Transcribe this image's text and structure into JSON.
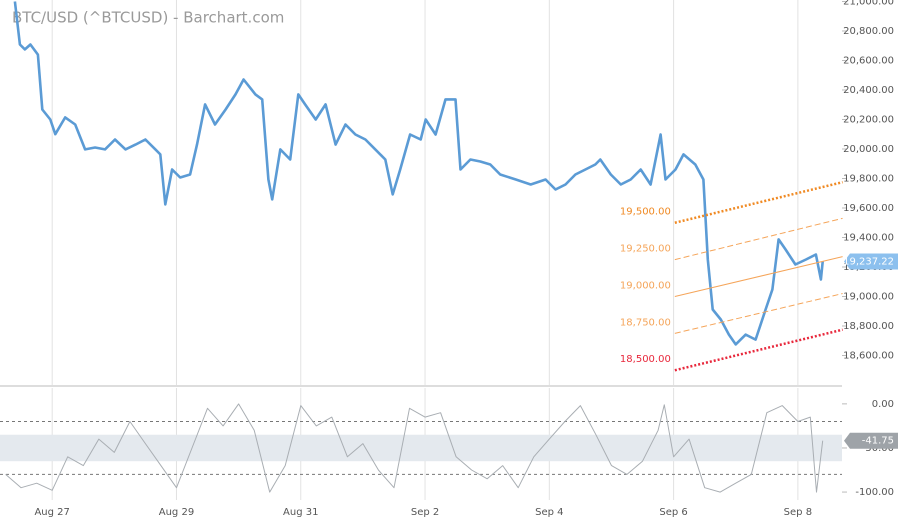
{
  "chart_data": [
    {
      "type": "line",
      "title": "BTC/USD (^BTCUSD) - Barchart.com",
      "x": [
        -0.6,
        -0.52,
        -0.44,
        -0.35,
        -0.23,
        -0.16,
        -0.03,
        0.05,
        0.21,
        0.37,
        0.53,
        0.69,
        0.85,
        1.01,
        1.18,
        1.34,
        1.5,
        1.66,
        1.74,
        1.82,
        1.93,
        2.06,
        2.22,
        2.33,
        2.46,
        2.62,
        2.79,
        2.95,
        3.08,
        3.27,
        3.38,
        3.48,
        3.54,
        3.67,
        3.83,
        3.96,
        4.07,
        4.24,
        4.4,
        4.56,
        4.72,
        4.88,
        5.04,
        5.2,
        5.36,
        5.48,
        5.6,
        5.76,
        5.93,
        6.01,
        6.17,
        6.33,
        6.49,
        6.57,
        6.73,
        6.89,
        7.05,
        7.21,
        7.46,
        7.7,
        7.94,
        8.1,
        8.26,
        8.42,
        8.58,
        8.74,
        8.82,
        8.99,
        9.15,
        9.31,
        9.47,
        9.63,
        9.79,
        9.87,
        10.03,
        10.16,
        10.35,
        10.48,
        10.55,
        10.63,
        10.76,
        10.89,
        11.0,
        11.16,
        11.32,
        11.48,
        11.59,
        11.69,
        11.8,
        11.96,
        12.13,
        12.29,
        12.37,
        12.4
      ],
      "series": [
        {
          "color": "#5b9bd5",
          "values": [
            21000,
            20708,
            20675,
            20708,
            20640,
            20268,
            20200,
            20100,
            20214,
            20166,
            19997,
            20010,
            19997,
            20064,
            19997,
            20030,
            20064,
            19997,
            19963,
            19624,
            19861,
            19807,
            19827,
            20030,
            20302,
            20166,
            20268,
            20370,
            20471,
            20370,
            20336,
            19793,
            19658,
            19997,
            19929,
            20370,
            20302,
            20200,
            20302,
            20030,
            20166,
            20098,
            20064,
            19997,
            19929,
            19692,
            19861,
            20098,
            20064,
            20200,
            20098,
            20336,
            20336,
            19861,
            19929,
            19915,
            19895,
            19827,
            19793,
            19759,
            19793,
            19725,
            19759,
            19827,
            19861,
            19895,
            19929,
            19827,
            19759,
            19793,
            19861,
            19759,
            20098,
            19793,
            19861,
            19963,
            19895,
            19793,
            19251,
            18912,
            18844,
            18742,
            18675,
            18742,
            18708,
            18912,
            19048,
            19387,
            19319,
            19217,
            19251,
            19285,
            19115,
            19237
          ]
        }
      ],
      "xlim": [
        -0.84,
        12.71
      ],
      "ylim": [
        18400,
        21010
      ],
      "yticks": [
        {
          "value": 18600,
          "label": "18,600.00"
        },
        {
          "value": 18800,
          "label": "18,800.00"
        },
        {
          "value": 19000,
          "label": "19,000.00"
        },
        {
          "value": 19200,
          "label": "19,200.00"
        },
        {
          "value": 19400,
          "label": "19,400.00"
        },
        {
          "value": 19600,
          "label": "19,600.00"
        },
        {
          "value": 19800,
          "label": "19,800.00"
        },
        {
          "value": 20000,
          "label": "20,000.00"
        },
        {
          "value": 20200,
          "label": "20,200.00"
        },
        {
          "value": 20400,
          "label": "20,400.00"
        },
        {
          "value": 20600,
          "label": "20,600.00"
        },
        {
          "value": 20800,
          "label": "20,800.00"
        },
        {
          "value": 21000,
          "label": "21,000.00"
        }
      ],
      "last_value": {
        "value": 19237.22,
        "label": "19,237.22"
      },
      "channel": {
        "x": [
          10.02,
          12.72
        ],
        "lines": [
          {
            "values": [
              19500,
              19775
            ],
            "value_label": "19,500.00",
            "color": "#f08a24",
            "style": "dotted"
          },
          {
            "values": [
              19250,
              19530
            ],
            "value_label": "19,250.00",
            "color": "#f5a55a",
            "style": "dashed"
          },
          {
            "values": [
              19000,
              19270
            ],
            "value_label": "19,000.00",
            "color": "#f5a55a",
            "style": "solid"
          },
          {
            "values": [
              18750,
              19020
            ],
            "value_label": "18,750.00",
            "color": "#f5a55a",
            "style": "dashed"
          },
          {
            "values": [
              18500,
              18775
            ],
            "value_label": "18,500.00",
            "color": "#e8283c",
            "style": "dotted"
          }
        ]
      }
    },
    {
      "type": "line",
      "x": [
        -0.75,
        -0.5,
        -0.25,
        0,
        0.25,
        0.5,
        0.75,
        1,
        1.25,
        1.5,
        1.75,
        2,
        2.25,
        2.5,
        2.75,
        3,
        3.25,
        3.5,
        3.75,
        4,
        4.25,
        4.5,
        4.75,
        5,
        5.25,
        5.5,
        5.75,
        6,
        6.25,
        6.5,
        6.75,
        7,
        7.25,
        7.5,
        7.75,
        8,
        8.25,
        8.5,
        8.75,
        9,
        9.25,
        9.5,
        9.75,
        9.85,
        10,
        10.25,
        10.5,
        10.75,
        11,
        11.25,
        11.5,
        11.75,
        12,
        12.2,
        12.3,
        12.4
      ],
      "series": [
        {
          "color": "#a9aeb3",
          "values": [
            -80,
            -95,
            -90,
            -98,
            -60,
            -70,
            -40,
            -55,
            -20,
            -45,
            -70,
            -95,
            -50,
            -5,
            -25,
            0,
            -30,
            -100,
            -70,
            -2,
            -25,
            -15,
            -60,
            -45,
            -75,
            -95,
            -5,
            -15,
            -10,
            -60,
            -75,
            -85,
            -70,
            -95,
            -60,
            -40,
            -20,
            -2,
            -35,
            -70,
            -80,
            -65,
            -30,
            -1,
            -60,
            -40,
            -95,
            -100,
            -90,
            -80,
            -10,
            -2,
            -20,
            -15,
            -100,
            -41.75
          ]
        }
      ],
      "xlim": [
        -0.84,
        12.71
      ],
      "ylim": [
        -109,
        18
      ],
      "yticks": [
        {
          "value": 0,
          "label": "0.00"
        },
        {
          "value": -50,
          "label": "-50.00"
        },
        {
          "value": -100,
          "label": "-100.00"
        }
      ],
      "levels": [
        -20,
        -80
      ],
      "band": [
        -35,
        -65
      ],
      "last_value": {
        "value": -41.75,
        "label": "-41.75"
      },
      "xticks": [
        {
          "value": 0,
          "label": "Aug 27"
        },
        {
          "value": 2,
          "label": "Aug 29"
        },
        {
          "value": 4,
          "label": "Aug 31"
        },
        {
          "value": 6,
          "label": "Sep 2"
        },
        {
          "value": 8,
          "label": "Sep 4"
        },
        {
          "value": 10,
          "label": "Sep 6"
        },
        {
          "value": 12,
          "label": "Sep 8"
        }
      ]
    }
  ]
}
